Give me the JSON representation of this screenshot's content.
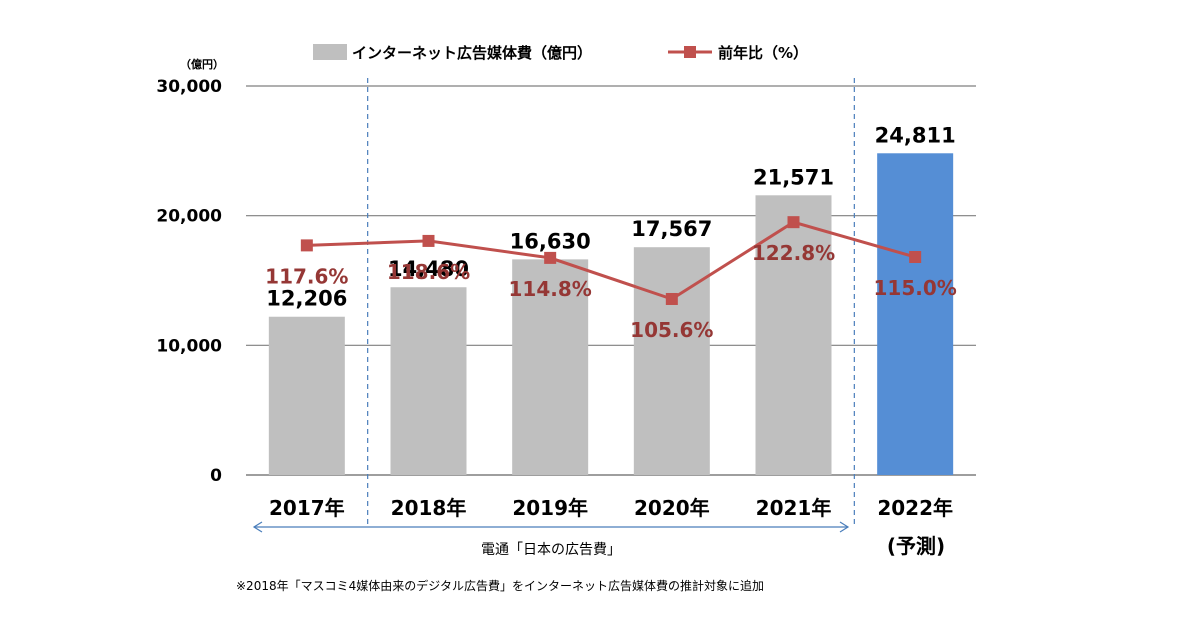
{
  "chart_data": {
    "type": "bar",
    "unit_label": "（億円）",
    "yticks": [
      "0",
      "10,000",
      "20,000",
      "30,000"
    ],
    "ylim": [
      0,
      30000
    ],
    "categories": [
      "2017年",
      "2018年",
      "2019年",
      "2020年",
      "2021年",
      "2022年"
    ],
    "forecast_sub": "(予測)",
    "series": [
      {
        "name": "インターネット広告媒体費（億円）",
        "kind": "bar",
        "values": [
          12206,
          14480,
          16630,
          17567,
          21571,
          24811
        ],
        "labels": [
          "12,206",
          "14,480",
          "16,630",
          "17,567",
          "21,571",
          "24,811"
        ]
      },
      {
        "name": "前年比（%）",
        "kind": "line",
        "values": [
          117.6,
          118.6,
          114.8,
          105.6,
          122.8,
          115.0
        ],
        "labels": [
          "117.6%",
          "118.6%",
          "114.8%",
          "105.6%",
          "122.8%",
          "115.0%"
        ]
      }
    ],
    "source_label": "電通「日本の広告費」",
    "footnote": "※2018年「マスコミ4媒体由来のデジタル広告費」をインターネット広告媒体費の推計対象に追加"
  },
  "colors": {
    "bar": "#bfbfbf",
    "bar_forecast": "#558ed5",
    "line": "#c0504d",
    "pct_text": "#953735",
    "grid": "#7f7f7f",
    "dashed": "#4a7ebb"
  }
}
